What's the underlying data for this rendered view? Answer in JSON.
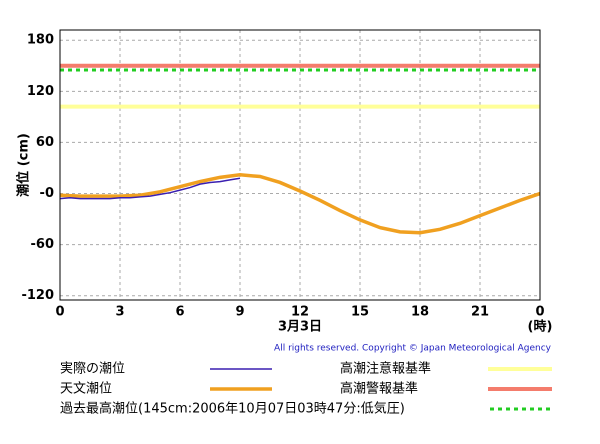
{
  "chart_data": {
    "type": "line",
    "y_label": "潮位 (cm)",
    "x_label": "3月3日",
    "x_unit": "(時)",
    "copyright": "All rights reserved. Copyright © Japan Meteorological Agency",
    "xlim": [
      0,
      24
    ],
    "ylim": [
      -125,
      192
    ],
    "xticks": [
      0,
      3,
      6,
      9,
      12,
      15,
      18,
      21,
      {
        "value": 24,
        "label": "0"
      }
    ],
    "yticks": [
      -120,
      -60,
      {
        "value": 0,
        "label": "-0"
      },
      60,
      120,
      180
    ],
    "grid": true,
    "series": [
      {
        "name": "実際の潮位",
        "color": "#3a1fb0",
        "x": [
          0,
          0.5,
          1,
          1.5,
          2,
          2.5,
          3,
          3.5,
          4,
          4.5,
          5,
          5.5,
          6,
          6.5,
          7,
          7.5,
          8,
          8.5,
          9
        ],
        "values": [
          -6,
          -5,
          -6,
          -6,
          -6,
          -6,
          -5,
          -5,
          -4,
          -3,
          -1,
          1,
          4,
          7,
          11,
          13,
          14,
          16,
          18
        ]
      },
      {
        "name": "天文潮位",
        "color": "#f0a020",
        "x": [
          0,
          1,
          2,
          3,
          4,
          5,
          6,
          7,
          8,
          9,
          10,
          11,
          12,
          13,
          14,
          15,
          16,
          17,
          18,
          19,
          20,
          21,
          22,
          23,
          24
        ],
        "values": [
          -2,
          -3,
          -3,
          -3,
          -2,
          2,
          8,
          14,
          19,
          22,
          20,
          13,
          3,
          -8,
          -20,
          -31,
          -40,
          -45,
          -46,
          -42,
          -35,
          -26,
          -17,
          -8,
          0
        ]
      }
    ],
    "reference_lines": [
      {
        "name": "高潮注意報基準",
        "value": 102,
        "color": "#ffff99"
      },
      {
        "name": "高潮警報基準",
        "value": 150,
        "color": "#f47c6c"
      },
      {
        "name": "過去最高潮位(145cm:2006年10月07日03時47分:低気圧)",
        "value": 145,
        "color": "#22cc22",
        "dashed": true
      }
    ]
  }
}
